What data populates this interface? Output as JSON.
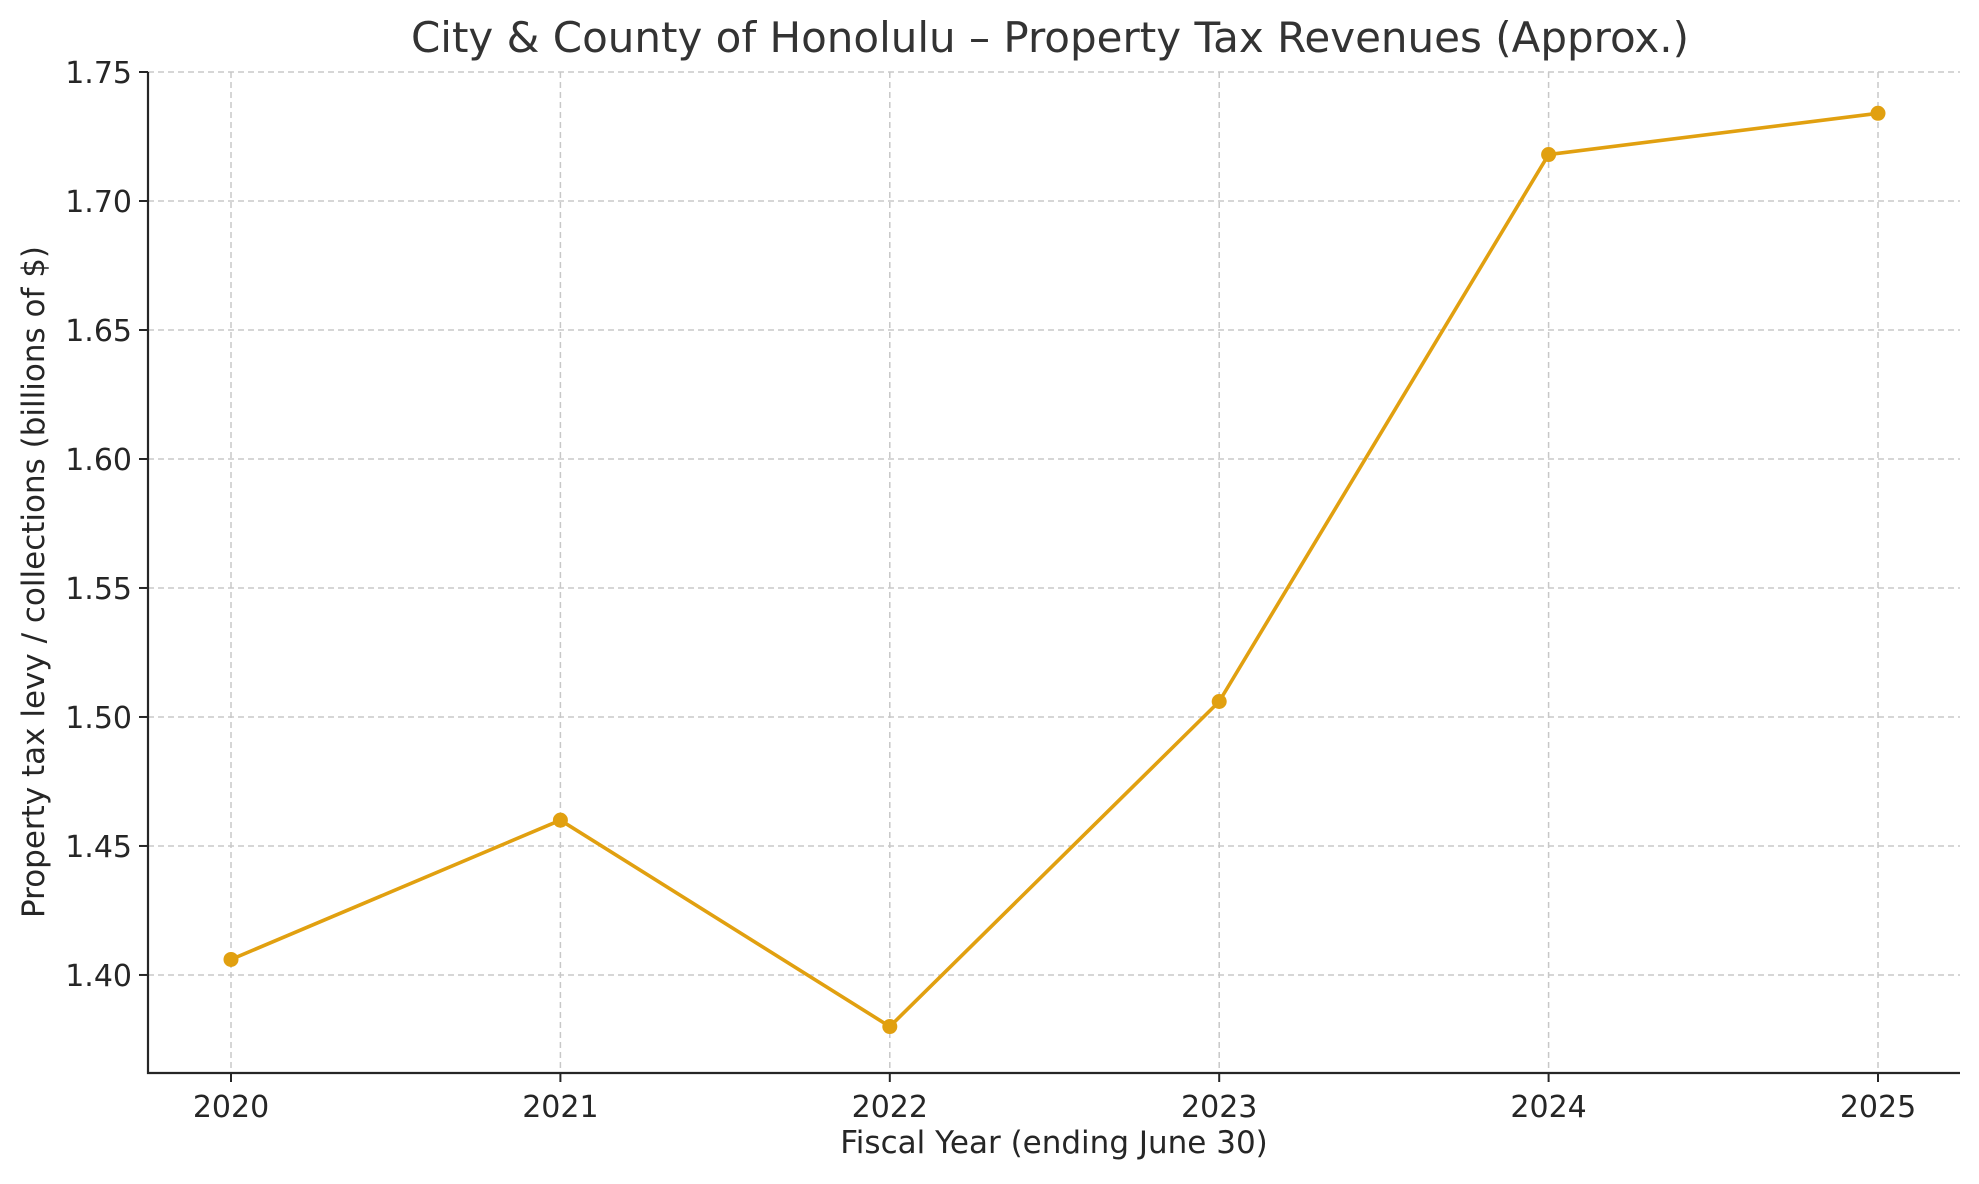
{
  "chart_data": {
    "type": "line",
    "title": "City & County of Honolulu – Property Tax Revenues (Approx.)",
    "xlabel": "Fiscal Year (ending June 30)",
    "ylabel": "Property tax levy / collections (billions of $)",
    "categories": [
      "2020",
      "2021",
      "2022",
      "2023",
      "2024",
      "2025"
    ],
    "series": [
      {
        "values": [
          1.406,
          1.46,
          1.38,
          1.506,
          1.718,
          1.734
        ]
      }
    ],
    "yticks": [
      "1.40",
      "1.45",
      "1.50",
      "1.55",
      "1.60",
      "1.65",
      "1.70",
      "1.75"
    ],
    "ylim": [
      1.362,
      1.75
    ],
    "grid": true,
    "line_color": "#E1A010"
  }
}
